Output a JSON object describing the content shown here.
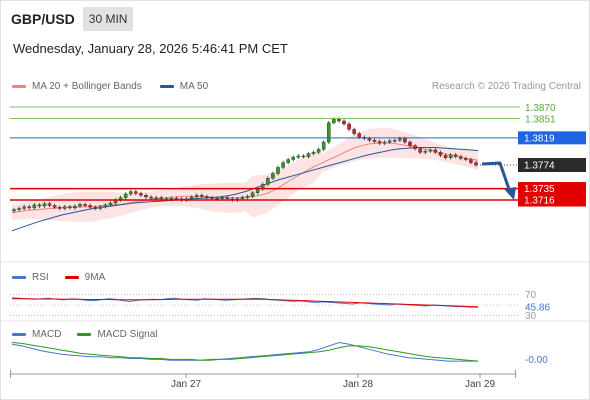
{
  "header": {
    "symbol": "GBP/USD",
    "timeframe": "30 MIN",
    "datetime": "Wednesday, January 28, 2026 5:46:41 PM CET",
    "copyright": "Research © 2026 Trading Central"
  },
  "legends": {
    "main": [
      {
        "label": "MA 20 + Bollinger Bands",
        "color": "#f08080"
      },
      {
        "label": "MA 50",
        "color": "#2b5797"
      }
    ],
    "rsi": [
      {
        "label": "RSI",
        "color": "#4a76d0"
      },
      {
        "label": "9MA",
        "color": "#e00000"
      }
    ],
    "macd": [
      {
        "label": "MACD",
        "color": "#4a76d0"
      },
      {
        "label": "MACD Signal",
        "color": "#2e9a1e"
      }
    ]
  },
  "colors": {
    "accent_blue": "#1e66e0",
    "level_red": "#e00000",
    "level_green": "#7ac25a",
    "last_price_bg": "#2a2a2a",
    "arrow": "#2b5797"
  },
  "chart_data": [
    {
      "type": "line",
      "panel": "price",
      "title": "GBP/USD 30 MIN",
      "ylim": [
        1.362,
        1.3885
      ],
      "x_ticks": [
        "Jan 27",
        "Jan 28",
        "Jan 29"
      ],
      "levels": [
        {
          "value": 1.387,
          "label": "1.3870",
          "color": "#7ac25a",
          "kind": "resistance"
        },
        {
          "value": 1.3851,
          "label": "1.3851",
          "color": "#7ac25a",
          "kind": "resistance"
        },
        {
          "value": 1.3819,
          "label": "1.3819",
          "color": "#1e66e0",
          "kind": "pivot"
        },
        {
          "value": 1.3735,
          "label": "1.3735",
          "color": "#e00000",
          "kind": "support"
        },
        {
          "value": 1.3716,
          "label": "1.3716",
          "color": "#e00000",
          "kind": "support"
        }
      ],
      "last_price": {
        "value": 1.3774,
        "label": "1.3774"
      },
      "forecast": "down",
      "close_series": [
        1.37,
        1.3702,
        1.3705,
        1.3703,
        1.3708,
        1.3706,
        1.371,
        1.3707,
        1.3704,
        1.3702,
        1.3705,
        1.3703,
        1.3706,
        1.3709,
        1.3707,
        1.3704,
        1.3702,
        1.3705,
        1.3708,
        1.3711,
        1.3716,
        1.372,
        1.3726,
        1.373,
        1.3727,
        1.3724,
        1.3721,
        1.3719,
        1.372,
        1.3718,
        1.3717,
        1.3719,
        1.3718,
        1.3716,
        1.3718,
        1.3721,
        1.3724,
        1.3722,
        1.372,
        1.3719,
        1.3718,
        1.372,
        1.3718,
        1.3716,
        1.3718,
        1.372,
        1.3722,
        1.3728,
        1.3734,
        1.3742,
        1.3752,
        1.376,
        1.377,
        1.3778,
        1.3783,
        1.3787,
        1.3789,
        1.3788,
        1.3793,
        1.3795,
        1.38,
        1.3812,
        1.3844,
        1.385,
        1.3847,
        1.3842,
        1.3833,
        1.3826,
        1.382,
        1.3818,
        1.3815,
        1.3813,
        1.381,
        1.3812,
        1.3814,
        1.3815,
        1.3818,
        1.3812,
        1.3806,
        1.3801,
        1.3795,
        1.3797,
        1.3799,
        1.3795,
        1.379,
        1.3786,
        1.3791,
        1.3788,
        1.3785,
        1.3783,
        1.3778,
        1.3774
      ],
      "ma20": [
        1.3695,
        1.3697,
        1.3699,
        1.37,
        1.3701,
        1.3702,
        1.3703,
        1.3704,
        1.3704,
        1.3705,
        1.3705,
        1.3706,
        1.3707,
        1.3708,
        1.3709,
        1.3711,
        1.3713,
        1.3715,
        1.3717,
        1.3719,
        1.372,
        1.3721,
        1.3722,
        1.3722,
        1.3722,
        1.3721,
        1.372,
        1.372,
        1.372,
        1.372,
        1.3721,
        1.3722,
        1.3724,
        1.3728,
        1.3734,
        1.3742,
        1.375,
        1.3758,
        1.3765,
        1.3772,
        1.3778,
        1.3784,
        1.379,
        1.3796,
        1.3802,
        1.3806,
        1.3809,
        1.381,
        1.3811,
        1.381,
        1.3808,
        1.3806,
        1.3804,
        1.3801,
        1.3798,
        1.3795,
        1.3792,
        1.3789,
        1.3786,
        1.3784,
        1.3782
      ],
      "ma50": [
        1.3665,
        1.367,
        1.3675,
        1.368,
        1.3684,
        1.3688,
        1.3692,
        1.3695,
        1.3698,
        1.3701,
        1.3703,
        1.3705,
        1.3707,
        1.3709,
        1.3711,
        1.3712,
        1.3713,
        1.3714,
        1.3715,
        1.3716,
        1.3717,
        1.3718,
        1.3719,
        1.372,
        1.3721,
        1.3723,
        1.3726,
        1.373,
        1.3735,
        1.374,
        1.3745,
        1.375,
        1.3754,
        1.3758,
        1.3762,
        1.3766,
        1.377,
        1.3774,
        1.3778,
        1.3782,
        1.3786,
        1.379,
        1.3793,
        1.3796,
        1.3799,
        1.3801,
        1.3802,
        1.3803,
        1.3803,
        1.3803,
        1.3802,
        1.3801,
        1.38,
        1.3799,
        1.3798
      ]
    },
    {
      "type": "line",
      "panel": "rsi",
      "ylim": [
        25,
        75
      ],
      "levels": [
        {
          "value": 70,
          "label": "70"
        },
        {
          "value": 30,
          "label": "30"
        }
      ],
      "last_value": {
        "value": 45.86,
        "label": "45.86"
      },
      "series": [
        {
          "name": "RSI",
          "values": [
            64,
            63,
            62,
            61,
            62,
            63,
            61,
            60,
            62,
            61,
            59,
            58,
            60,
            62,
            61,
            58,
            57,
            59,
            60,
            61,
            60,
            62,
            63,
            61,
            60,
            59,
            62,
            61,
            60,
            59,
            60,
            61,
            62,
            63,
            62,
            60,
            59,
            58,
            57,
            58,
            56,
            55,
            56,
            55,
            54,
            53,
            52,
            54,
            53,
            52,
            51,
            50,
            52,
            51,
            50,
            49,
            48,
            50,
            49,
            48,
            47,
            47,
            46,
            45.86
          ]
        },
        {
          "name": "9MA",
          "values": [
            62,
            62,
            62,
            61.5,
            61.5,
            61.5,
            61.5,
            61,
            61,
            61,
            60.5,
            60.5,
            60.5,
            60.5,
            60,
            60,
            60,
            60,
            60,
            60,
            60.5,
            60.5,
            61,
            61,
            61,
            61,
            61,
            61,
            61,
            61,
            61,
            61,
            61,
            61,
            61,
            60.5,
            60,
            59.5,
            59,
            58.5,
            58,
            57.5,
            57,
            56.5,
            56,
            55.5,
            55,
            54.5,
            54,
            53.5,
            53,
            52.5,
            52,
            51.5,
            51,
            50.5,
            50,
            49.5,
            49,
            48.5,
            48,
            47.5,
            47,
            46.5
          ]
        }
      ]
    },
    {
      "type": "line",
      "panel": "macd",
      "ylim": [
        -0.0015,
        0.0023
      ],
      "last_value": {
        "value": -0.0,
        "label": "-0.00"
      },
      "series": [
        {
          "name": "MACD",
          "values": [
            0.0018,
            0.0016,
            0.0013,
            0.001,
            0.0008,
            0.0006,
            0.0005,
            0.0004,
            0.0003,
            0.0003,
            0.0002,
            0.0002,
            0.0001,
            0.0001,
            0.0,
            0.0,
            -0.0001,
            -0.0001,
            -0.0001,
            -0.0001,
            0.0,
            0.0,
            0.0001,
            0.0002,
            0.0003,
            0.0004,
            0.0005,
            0.0006,
            0.0007,
            0.0008,
            0.0009,
            0.0012,
            0.0016,
            0.002,
            0.0018,
            0.0015,
            0.0012,
            0.0009,
            0.0006,
            0.0004,
            0.0002,
            0.0001,
            0.0,
            -0.0001,
            -0.0002,
            -0.0002,
            -0.0002,
            -0.0002
          ]
        },
        {
          "name": "MACD Signal",
          "values": [
            0.002,
            0.0019,
            0.0017,
            0.0015,
            0.0013,
            0.0011,
            0.0009,
            0.0007,
            0.0006,
            0.0005,
            0.0004,
            0.0003,
            0.0002,
            0.0002,
            0.0001,
            0.0001,
            0.0,
            0.0,
            0.0,
            -0.0001,
            -0.0001,
            0.0,
            0.0,
            0.0001,
            0.0002,
            0.0003,
            0.0004,
            0.0005,
            0.0006,
            0.0007,
            0.0008,
            0.0009,
            0.0011,
            0.0014,
            0.0016,
            0.0016,
            0.0015,
            0.0013,
            0.0011,
            0.0009,
            0.0007,
            0.0005,
            0.0003,
            0.0002,
            0.0001,
            0.0,
            -0.0001,
            -0.0002
          ]
        }
      ]
    }
  ]
}
